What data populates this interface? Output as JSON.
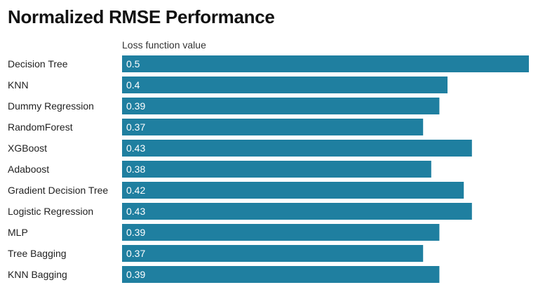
{
  "chart_data": {
    "type": "bar",
    "orientation": "horizontal",
    "title": "Normalized RMSE Performance",
    "xlabel": "Loss function value",
    "ylabel": "",
    "categories": [
      "Decision Tree",
      "KNN",
      "Dummy Regression",
      "RandomForest",
      "XGBoost",
      "Adaboost",
      "Gradient Decision Tree",
      "Logistic Regression",
      "MLP",
      "Tree Bagging",
      "KNN Bagging"
    ],
    "values": [
      0.5,
      0.4,
      0.39,
      0.37,
      0.43,
      0.38,
      0.42,
      0.43,
      0.39,
      0.37,
      0.39
    ],
    "value_labels": [
      "0.5",
      "0.4",
      "0.39",
      "0.37",
      "0.43",
      "0.38",
      "0.42",
      "0.43",
      "0.39",
      "0.37",
      "0.39"
    ],
    "xlim": [
      0,
      0.5
    ],
    "grid": false,
    "legend": "none",
    "bar_color": "#1f7fa0",
    "label_color": "#ffffff"
  }
}
